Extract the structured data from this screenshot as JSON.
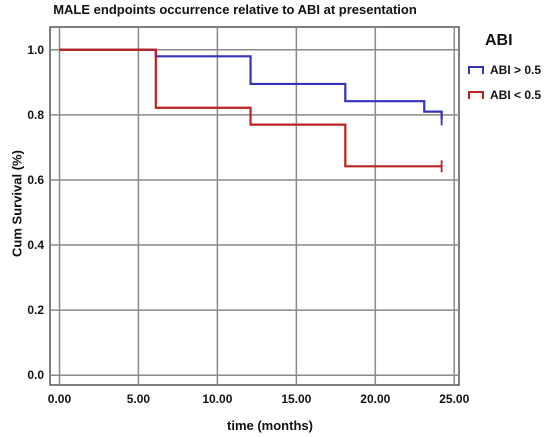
{
  "chart_data": {
    "type": "line",
    "subtype": "kaplan-meier step",
    "title": "MALE endpoints occurrence relative to ABI at presentation",
    "xlabel": "time (months)",
    "ylabel": "Cum Survival (%)",
    "x_ticks": [
      "0.00",
      "5.00",
      "10.00",
      "15.00",
      "20.00",
      "25.00"
    ],
    "y_ticks": [
      "0.0",
      "0.2",
      "0.4",
      "0.6",
      "0.8",
      "1.0"
    ],
    "xlim": [
      -0.6,
      25.3
    ],
    "ylim": [
      -0.03,
      1.07
    ],
    "grid": true,
    "legend": {
      "title": "ABI",
      "placement": "right"
    },
    "series": [
      {
        "name": "ABI > 0.5",
        "color": "#3333bb",
        "x": [
          0,
          6.1,
          12.1,
          18.1,
          23.1,
          24.2
        ],
        "y": [
          1.0,
          0.98,
          0.895,
          0.842,
          0.81,
          0.786
        ],
        "censor": [
          24.2,
          0.786
        ]
      },
      {
        "name": "ABI < 0.5",
        "color": "#bb2222",
        "x": [
          0,
          6.1,
          12.1,
          18.1,
          24.2
        ],
        "y": [
          1.0,
          0.822,
          0.77,
          0.642,
          0.642
        ],
        "censor": [
          24.2,
          0.642
        ]
      }
    ]
  }
}
